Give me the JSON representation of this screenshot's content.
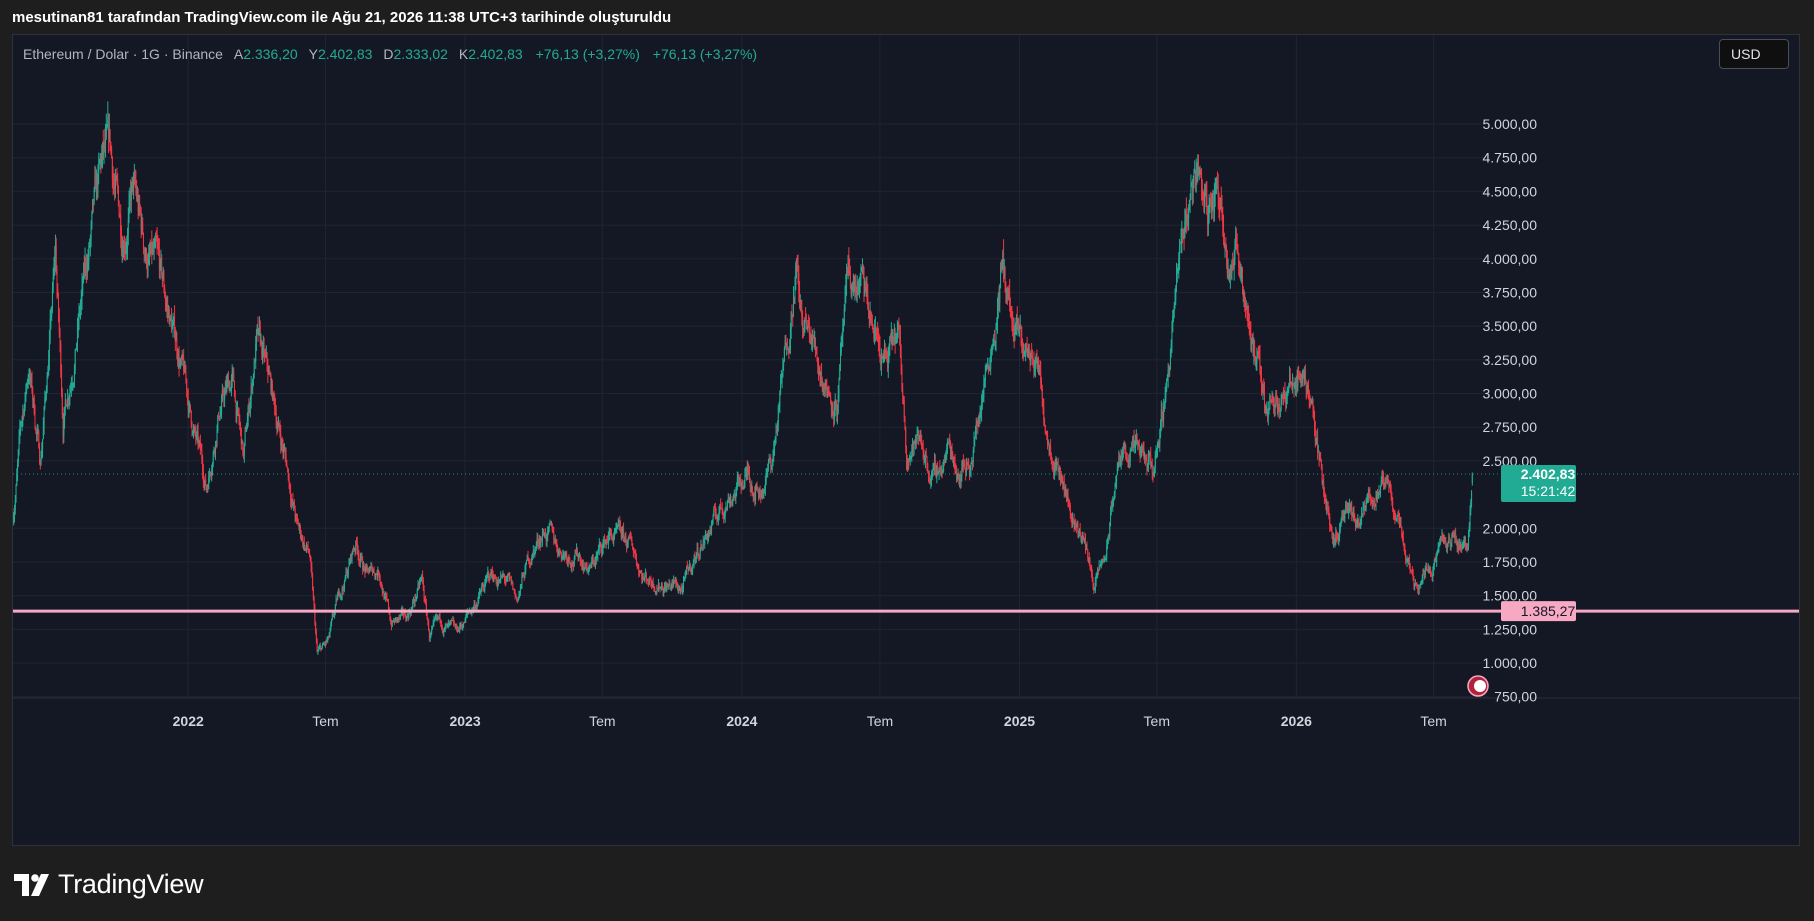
{
  "caption": "mesutinan81 tarafından TradingView.com ile Ağu 21, 2026 11:38 UTC+3 tarihinde oluşturuldu",
  "legend": {
    "symbol": "Ethereum / Dolar · 1G · Binance",
    "open_label": "A",
    "open": "2.336,20",
    "high_label": "Y",
    "high": "2.402,83",
    "low_label": "D",
    "low": "2.333,02",
    "close_label": "K",
    "close": "2.402,83",
    "change": "+76,13 (+3,27%)",
    "change2": "+76,13 (+3,27%)"
  },
  "currency_button": "USD",
  "price_tag": {
    "price": "2.402,83",
    "countdown": "15:21:42"
  },
  "level_tag": {
    "price": "1.385,27"
  },
  "brand": "TradingView",
  "colors": {
    "up": "#22ab94",
    "down": "#f23645",
    "level_line": "#f7a9c4",
    "price_tag_bg": "#22ab94",
    "background": "#141824"
  },
  "chart_data": {
    "type": "candlestick",
    "yticks": [
      {
        "value": 5000,
        "label": "5.000,00"
      },
      {
        "value": 4750,
        "label": "4.750,00"
      },
      {
        "value": 4500,
        "label": "4.500,00"
      },
      {
        "value": 4250,
        "label": "4.250,00"
      },
      {
        "value": 4000,
        "label": "4.000,00"
      },
      {
        "value": 3750,
        "label": "3.750,00"
      },
      {
        "value": 3500,
        "label": "3.500,00"
      },
      {
        "value": 3250,
        "label": "3.250,00"
      },
      {
        "value": 3000,
        "label": "3.000,00"
      },
      {
        "value": 2750,
        "label": "2.750,00"
      },
      {
        "value": 2500,
        "label": "2.500,00"
      },
      {
        "value": 2000,
        "label": "2.000,00"
      },
      {
        "value": 1750,
        "label": "1.750,00"
      },
      {
        "value": 1500,
        "label": "1.500,00"
      },
      {
        "value": 1250,
        "label": "1.250,00"
      },
      {
        "value": 1000,
        "label": "1.000,00"
      },
      {
        "value": 750,
        "label": "750,00"
      }
    ],
    "xticks": [
      {
        "date": "2022-01-01",
        "label": "2022",
        "bold": true
      },
      {
        "date": "2022-07-01",
        "label": "Tem",
        "bold": false
      },
      {
        "date": "2023-01-01",
        "label": "2023",
        "bold": true
      },
      {
        "date": "2023-07-01",
        "label": "Tem",
        "bold": false
      },
      {
        "date": "2024-01-01",
        "label": "2024",
        "bold": true
      },
      {
        "date": "2024-07-01",
        "label": "Tem",
        "bold": false
      },
      {
        "date": "2025-01-01",
        "label": "2025",
        "bold": true
      },
      {
        "date": "2025-07-01",
        "label": "Tem",
        "bold": false
      },
      {
        "date": "2026-01-01",
        "label": "2026",
        "bold": true
      },
      {
        "date": "2026-07-01",
        "label": "Tem",
        "bold": false
      }
    ],
    "x_range": [
      "2021-05-15",
      "2026-09-12"
    ],
    "y_range": [
      550,
      5300
    ],
    "last_price": 2402.83,
    "horizontal_level": 1385.27,
    "price_path": [
      [
        "2021-05-15",
        2100
      ],
      [
        "2021-05-25",
        2700
      ],
      [
        "2021-06-05",
        3200
      ],
      [
        "2021-06-20",
        2500
      ],
      [
        "2021-07-01",
        3300
      ],
      [
        "2021-07-10",
        4000
      ],
      [
        "2021-07-20",
        2800
      ],
      [
        "2021-08-05",
        3400
      ],
      [
        "2021-08-25",
        4100
      ],
      [
        "2021-09-10",
        4650
      ],
      [
        "2021-09-20",
        4700
      ],
      [
        "2021-10-05",
        4200
      ],
      [
        "2021-10-20",
        4500
      ],
      [
        "2021-11-05",
        4050
      ],
      [
        "2021-11-20",
        3900
      ],
      [
        "2021-12-05",
        3600
      ],
      [
        "2021-12-20",
        3300
      ],
      [
        "2022-01-05",
        2800
      ],
      [
        "2022-01-25",
        2300
      ],
      [
        "2022-02-10",
        2900
      ],
      [
        "2022-02-28",
        3100
      ],
      [
        "2022-03-15",
        2500
      ],
      [
        "2022-04-01",
        3400
      ],
      [
        "2022-04-20",
        3000
      ],
      [
        "2022-05-10",
        2500
      ],
      [
        "2022-05-25",
        2000
      ],
      [
        "2022-06-10",
        1800
      ],
      [
        "2022-06-20",
        1050
      ],
      [
        "2022-07-05",
        1150
      ],
      [
        "2022-07-20",
        1500
      ],
      [
        "2022-08-10",
        1900
      ],
      [
        "2022-08-25",
        1650
      ],
      [
        "2022-09-10",
        1700
      ],
      [
        "2022-09-25",
        1300
      ],
      [
        "2022-10-15",
        1320
      ],
      [
        "2022-11-05",
        1600
      ],
      [
        "2022-11-15",
        1200
      ],
      [
        "2022-12-01",
        1280
      ],
      [
        "2022-12-20",
        1200
      ],
      [
        "2023-01-15",
        1450
      ],
      [
        "2023-02-05",
        1650
      ],
      [
        "2023-02-25",
        1600
      ],
      [
        "2023-03-10",
        1450
      ],
      [
        "2023-03-25",
        1750
      ],
      [
        "2023-04-15",
        2000
      ],
      [
        "2023-05-05",
        1850
      ],
      [
        "2023-06-01",
        1800
      ],
      [
        "2023-06-15",
        1700
      ],
      [
        "2023-07-10",
        1950
      ],
      [
        "2023-08-10",
        1850
      ],
      [
        "2023-08-25",
        1650
      ],
      [
        "2023-09-20",
        1600
      ],
      [
        "2023-10-15",
        1550
      ],
      [
        "2023-11-05",
        1850
      ],
      [
        "2023-11-25",
        2050
      ],
      [
        "2023-12-15",
        2250
      ],
      [
        "2024-01-10",
        2400
      ],
      [
        "2024-01-25",
        2300
      ],
      [
        "2024-02-10",
        2500
      ],
      [
        "2024-02-28",
        3300
      ],
      [
        "2024-03-12",
        4000
      ],
      [
        "2024-03-20",
        3500
      ],
      [
        "2024-04-05",
        3350
      ],
      [
        "2024-04-20",
        3100
      ],
      [
        "2024-05-05",
        2950
      ],
      [
        "2024-05-20",
        3750
      ],
      [
        "2024-06-05",
        3800
      ],
      [
        "2024-06-20",
        3500
      ],
      [
        "2024-07-10",
        3200
      ],
      [
        "2024-07-25",
        3400
      ],
      [
        "2024-08-05",
        2600
      ],
      [
        "2024-08-25",
        2650
      ],
      [
        "2024-09-10",
        2350
      ],
      [
        "2024-09-30",
        2600
      ],
      [
        "2024-10-15",
        2450
      ],
      [
        "2024-10-31",
        2550
      ],
      [
        "2024-11-15",
        3100
      ],
      [
        "2024-11-30",
        3600
      ],
      [
        "2024-12-10",
        3950
      ],
      [
        "2024-12-25",
        3400
      ],
      [
        "2025-01-10",
        3300
      ],
      [
        "2025-01-25",
        3200
      ],
      [
        "2025-02-05",
        2800
      ],
      [
        "2025-02-25",
        2450
      ],
      [
        "2025-03-10",
        2100
      ],
      [
        "2025-03-25",
        1950
      ],
      [
        "2025-04-10",
        1580
      ],
      [
        "2025-04-25",
        1800
      ],
      [
        "2025-05-10",
        2450
      ],
      [
        "2025-05-25",
        2600
      ],
      [
        "2025-06-10",
        2500
      ],
      [
        "2025-06-25",
        2400
      ],
      [
        "2025-07-10",
        2900
      ],
      [
        "2025-07-25",
        3700
      ],
      [
        "2025-08-10",
        4300
      ],
      [
        "2025-08-22",
        4750
      ],
      [
        "2025-09-05",
        4350
      ],
      [
        "2025-09-20",
        4500
      ],
      [
        "2025-10-05",
        4100
      ],
      [
        "2025-10-20",
        4000
      ],
      [
        "2025-11-05",
        3400
      ],
      [
        "2025-11-20",
        2900
      ],
      [
        "2025-12-05",
        3050
      ],
      [
        "2025-12-20",
        2950
      ],
      [
        "2026-01-05",
        3200
      ],
      [
        "2026-01-20",
        3000
      ],
      [
        "2026-02-05",
        2300
      ],
      [
        "2026-02-20",
        1950
      ],
      [
        "2026-03-10",
        2100
      ],
      [
        "2026-03-25",
        2000
      ],
      [
        "2026-04-15",
        2300
      ],
      [
        "2026-05-01",
        2250
      ],
      [
        "2026-05-15",
        2100
      ],
      [
        "2026-05-25",
        1850
      ],
      [
        "2026-06-05",
        1600
      ],
      [
        "2026-06-20",
        1700
      ],
      [
        "2026-07-10",
        1850
      ],
      [
        "2026-07-30",
        1900
      ],
      [
        "2026-08-15",
        1880
      ],
      [
        "2026-08-20",
        2330
      ],
      [
        "2026-08-21",
        2402.83
      ]
    ]
  }
}
